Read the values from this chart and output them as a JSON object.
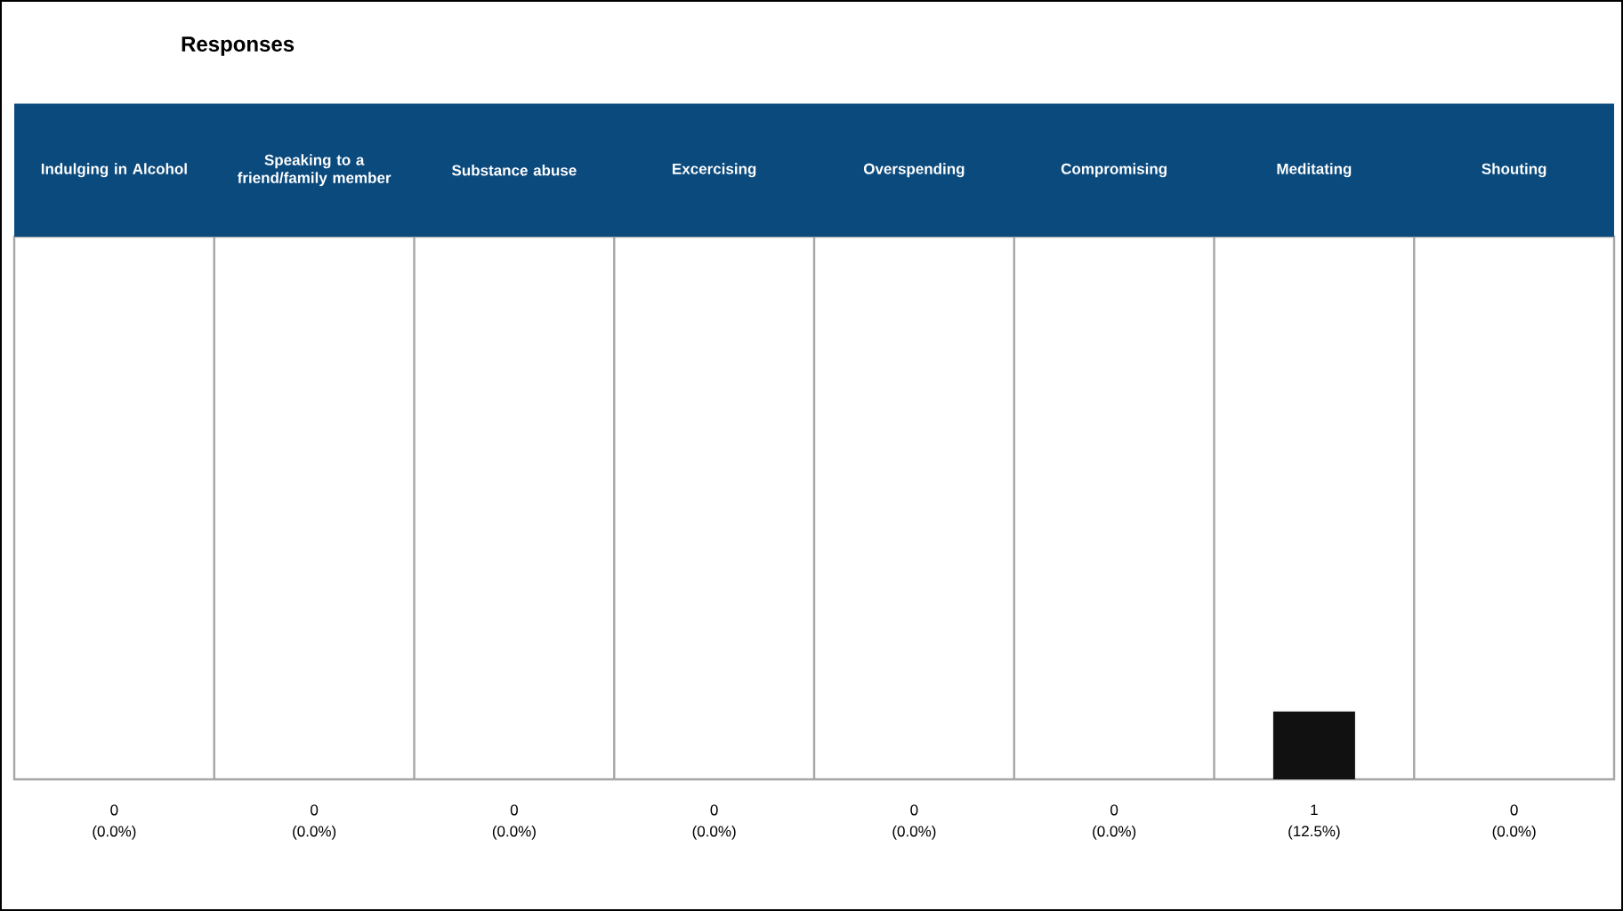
{
  "chart_data": {
    "type": "bar",
    "title": "Responses",
    "categories": [
      "Indulging in Alcohol",
      "Speaking to a friend/family member",
      "Substance abuse",
      "Excercising",
      "Overspending",
      "Compromising",
      "Meditating",
      "Shouting"
    ],
    "values": [
      0,
      0,
      0,
      0,
      0,
      0,
      12.5,
      0
    ],
    "value_labels": [
      "0 (0.0%)",
      "0 (0.0%)",
      "0 (0.0%)",
      "0 (0.0%)",
      "0 (0.0%)",
      "0 (0.0%)",
      "1 (12.5%)",
      "0 (0.0%)"
    ],
    "color": "#111111",
    "ylim": [
      0,
      100
    ]
  }
}
